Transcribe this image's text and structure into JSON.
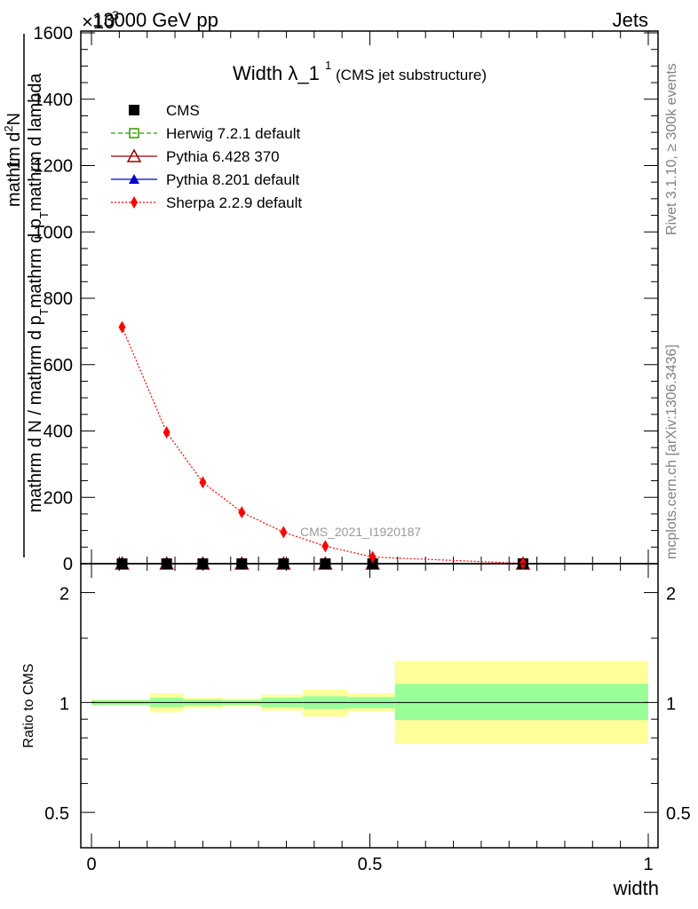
{
  "header": {
    "left": "13000 GeV pp",
    "right": "Jets",
    "exponent": "×10",
    "exponent_power": "3"
  },
  "side_labels": {
    "rivet": "Rivet 3.1.10, ≥ 300k events",
    "mcplots": "mcplots.cern.ch [arXiv:1306.3436]"
  },
  "chart_data": [
    {
      "type": "line",
      "title": "Width λ_1",
      "title_sup": "1",
      "subtitle": "(CMS jet substructure)",
      "watermark": "CMS_2021_I1920187",
      "xlabel": "",
      "ylabel_num": "mathrm d²N",
      "ylabel_num_parts": [
        "mathrm d",
        "2",
        "N"
      ],
      "ylabel_line1": "1",
      "ylabel_den": "mathrm d N / mathrm d p_T mathrm d p_T mathrm d lambda",
      "ylabel_den_parts": [
        "mathrm d N / mathrm d p",
        "T",
        "mathrm d p",
        "T",
        "mathrm d lambda"
      ],
      "xlim": [
        0,
        1
      ],
      "ylim": [
        0,
        1600
      ],
      "y_ticks": [
        0,
        200,
        400,
        600,
        800,
        1000,
        1200,
        1400,
        1600
      ],
      "legend": [
        {
          "name": "CMS",
          "color": "#000000",
          "marker": "square-filled",
          "line": "none"
        },
        {
          "name": "Herwig 7.2.1 default",
          "color": "#339900",
          "marker": "square-open",
          "line": "dashed"
        },
        {
          "name": "Pythia 6.428 370",
          "color": "#990000",
          "marker": "triangle-open",
          "line": "solid"
        },
        {
          "name": "Pythia 8.201 default",
          "color": "#0000cc",
          "marker": "triangle-filled",
          "line": "solid"
        },
        {
          "name": "Sherpa 2.2.9 default",
          "color": "#ff0000",
          "marker": "diamond-filled",
          "line": "dotted"
        }
      ],
      "series": [
        {
          "name": "CMS",
          "x": [
            0.055,
            0.135,
            0.2,
            0.27,
            0.345,
            0.42,
            0.505,
            0.775
          ],
          "y": [
            0,
            0,
            0,
            0,
            0,
            0,
            0,
            0
          ]
        },
        {
          "name": "Sherpa 2.2.9 default",
          "x": [
            0.055,
            0.135,
            0.2,
            0.27,
            0.345,
            0.42,
            0.505,
            0.775
          ],
          "y": [
            713,
            396,
            245,
            155,
            95,
            53,
            20,
            1
          ]
        }
      ]
    },
    {
      "type": "area",
      "ylabel": "Ratio to CMS",
      "xlabel": "width",
      "xlim": [
        0,
        1
      ],
      "ylim": [
        0.4,
        2.4
      ],
      "log_scale_y": true,
      "y_ticks": [
        0.5,
        1,
        2
      ],
      "x_ticks": [
        0,
        0.5,
        1
      ],
      "x_tick_labels": [
        "0",
        "0.5",
        "1"
      ],
      "colors": {
        "inner": "#99ff99",
        "outer": "#ffff99"
      },
      "bands": [
        {
          "x0": 0.0,
          "x1": 0.105,
          "inner": [
            0.985,
            1.015
          ],
          "outer": [
            0.98,
            1.02
          ]
        },
        {
          "x0": 0.105,
          "x1": 0.165,
          "inner": [
            0.97,
            1.03
          ],
          "outer": [
            0.94,
            1.06
          ]
        },
        {
          "x0": 0.165,
          "x1": 0.235,
          "inner": [
            0.98,
            1.02
          ],
          "outer": [
            0.965,
            1.03
          ]
        },
        {
          "x0": 0.235,
          "x1": 0.305,
          "inner": [
            0.985,
            1.015
          ],
          "outer": [
            0.975,
            1.025
          ]
        },
        {
          "x0": 0.305,
          "x1": 0.38,
          "inner": [
            0.97,
            1.03
          ],
          "outer": [
            0.95,
            1.05
          ]
        },
        {
          "x0": 0.38,
          "x1": 0.46,
          "inner": [
            0.96,
            1.04
          ],
          "outer": [
            0.915,
            1.085
          ]
        },
        {
          "x0": 0.46,
          "x1": 0.545,
          "inner": [
            0.965,
            1.035
          ],
          "outer": [
            0.945,
            1.06
          ]
        },
        {
          "x0": 0.545,
          "x1": 1.0,
          "inner": [
            0.895,
            1.125
          ],
          "outer": [
            0.77,
            1.3
          ]
        }
      ]
    }
  ]
}
